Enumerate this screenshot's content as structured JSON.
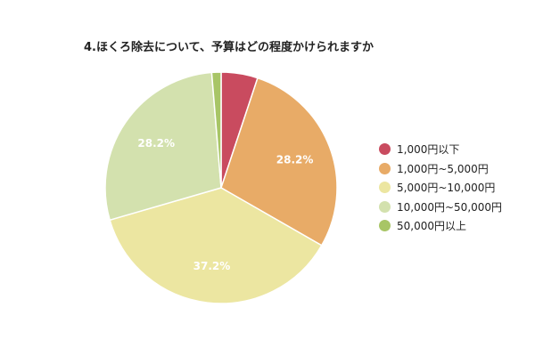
{
  "chart_data": {
    "type": "pie",
    "title": "4.ほくろ除去について、予算はどの程度かけられますか",
    "categories": [
      "1,000円以下",
      "1,000円~5,000円",
      "5,000円~10,000円",
      "10,000円~50,000円",
      "50,000円以上"
    ],
    "values": [
      5.1,
      28.2,
      37.2,
      28.2,
      1.3
    ],
    "value_unit": "%",
    "colors": [
      "#c94b5f",
      "#e8ab67",
      "#ece6a1",
      "#d3e1ae",
      "#a8c566"
    ],
    "visible_labels": [
      "",
      "28.2%",
      "37.2%",
      "28.2%",
      ""
    ],
    "start_angle": "12 o'clock",
    "direction": "clockwise",
    "legend_position": "right"
  }
}
